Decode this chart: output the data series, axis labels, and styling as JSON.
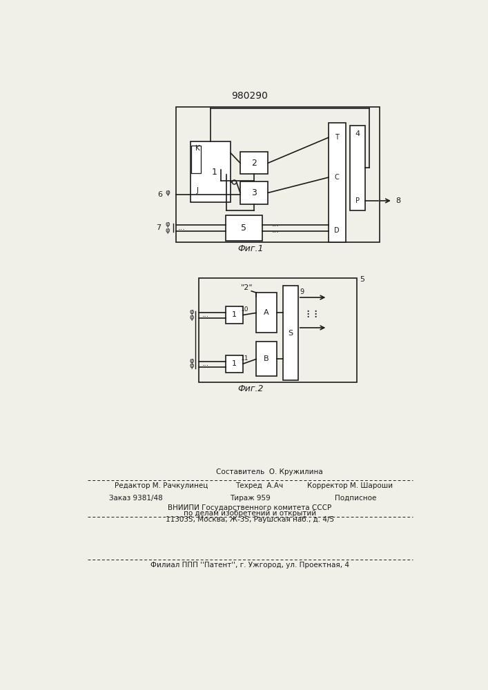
{
  "title_number": "980290",
  "fig1_caption": "Фиг.1",
  "fig2_caption": "Фиг.2",
  "bg_color": "#f0efe8",
  "line_color": "#1a1a1a",
  "box_fill": "#ffffff",
  "editor_line": "Редактор М. Рачкулинец",
  "tehred_line": "Техред  А.Ач",
  "corrector_line": "Корректор М. Шароши",
  "sostavitel_line": "Составитель  О. Кружилина",
  "zakaz_line": "Заказ 9381/48",
  "tirazh_line": "Тираж 959",
  "podpisnoe_line": "Подписное",
  "vniipи_line1": "ВНИИПИ Государственного комитета СССР",
  "vniipи_line2": "по делам изобретений и открытий",
  "vniipи_line3": "113035, Москва, Ж-35, Раушская наб., д. 4/5",
  "filial_line": "Филиал ППП ''Патент'', г. Ужгород, ул. Проектная, 4"
}
